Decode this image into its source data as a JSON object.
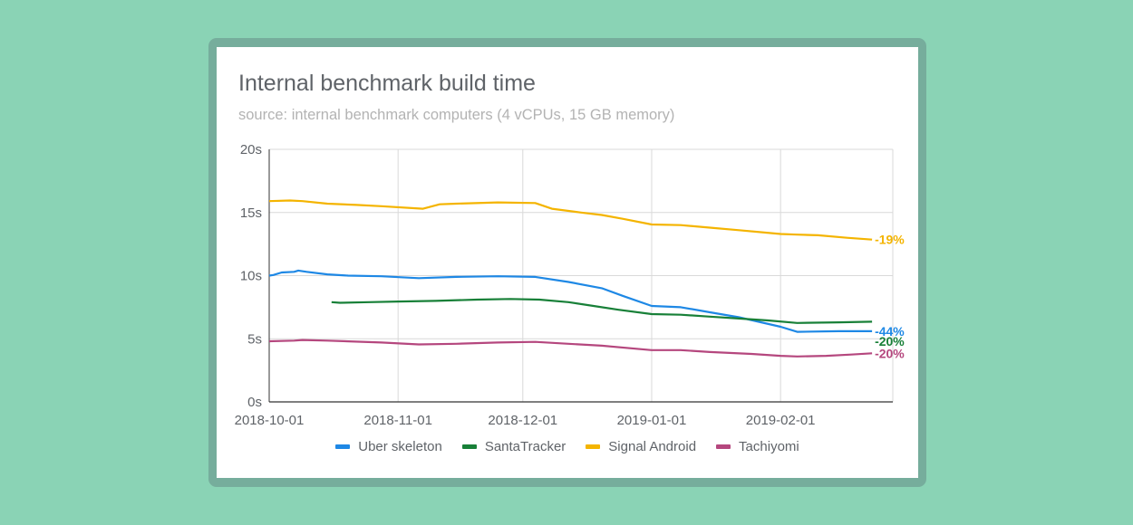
{
  "chart_data": {
    "type": "line",
    "title": "Internal benchmark build time",
    "subtitle": "source:  internal benchmark computers (4 vCPUs, 15 GB memory)",
    "xlabel": "",
    "ylabel": "",
    "x_range": [
      "2018-10-01",
      "2019-02-28"
    ],
    "ylim": [
      0,
      20
    ],
    "y_ticks": [
      "0s",
      "5s",
      "10s",
      "15s",
      "20s"
    ],
    "x_ticks": [
      "2018-10-01",
      "2018-11-01",
      "2018-12-01",
      "2019-01-01",
      "2019-02-01"
    ],
    "grid": true,
    "legend_position": "bottom",
    "series": [
      {
        "name": "Uber skeleton",
        "color": "#1e88e5",
        "change_label": "-44%",
        "points": [
          [
            "2018-10-01",
            10.0
          ],
          [
            "2018-10-02",
            10.05
          ],
          [
            "2018-10-04",
            10.25
          ],
          [
            "2018-10-07",
            10.3
          ],
          [
            "2018-10-08",
            10.4
          ],
          [
            "2018-10-10",
            10.3
          ],
          [
            "2018-10-15",
            10.1
          ],
          [
            "2018-10-20",
            10.0
          ],
          [
            "2018-10-28",
            9.95
          ],
          [
            "2018-11-06",
            9.8
          ],
          [
            "2018-11-15",
            9.9
          ],
          [
            "2018-11-25",
            9.95
          ],
          [
            "2018-12-04",
            9.9
          ],
          [
            "2018-12-12",
            9.5
          ],
          [
            "2018-12-20",
            9.0
          ],
          [
            "2018-12-25",
            8.4
          ],
          [
            "2019-01-01",
            7.6
          ],
          [
            "2019-01-08",
            7.5
          ],
          [
            "2019-01-15",
            7.1
          ],
          [
            "2019-01-22",
            6.7
          ],
          [
            "2019-02-01",
            5.95
          ],
          [
            "2019-02-05",
            5.55
          ],
          [
            "2019-02-15",
            5.6
          ],
          [
            "2019-02-23",
            5.6
          ]
        ]
      },
      {
        "name": "SantaTracker",
        "color": "#188038",
        "change_label": "-20%",
        "points": [
          [
            "2018-10-16",
            7.9
          ],
          [
            "2018-10-18",
            7.85
          ],
          [
            "2018-10-25",
            7.9
          ],
          [
            "2018-11-01",
            7.95
          ],
          [
            "2018-11-10",
            8.0
          ],
          [
            "2018-11-20",
            8.1
          ],
          [
            "2018-11-28",
            8.15
          ],
          [
            "2018-12-05",
            8.1
          ],
          [
            "2018-12-12",
            7.9
          ],
          [
            "2018-12-18",
            7.6
          ],
          [
            "2018-12-24",
            7.3
          ],
          [
            "2019-01-01",
            6.95
          ],
          [
            "2019-01-08",
            6.9
          ],
          [
            "2019-01-15",
            6.75
          ],
          [
            "2019-01-22",
            6.6
          ],
          [
            "2019-01-29",
            6.45
          ],
          [
            "2019-02-05",
            6.25
          ],
          [
            "2019-02-15",
            6.3
          ],
          [
            "2019-02-23",
            6.35
          ]
        ]
      },
      {
        "name": "Signal Android",
        "color": "#f4b400",
        "change_label": "-19%",
        "points": [
          [
            "2018-10-01",
            15.9
          ],
          [
            "2018-10-06",
            15.95
          ],
          [
            "2018-10-09",
            15.9
          ],
          [
            "2018-10-15",
            15.7
          ],
          [
            "2018-10-22",
            15.6
          ],
          [
            "2018-10-28",
            15.5
          ],
          [
            "2018-11-07",
            15.3
          ],
          [
            "2018-11-11",
            15.65
          ],
          [
            "2018-11-15",
            15.7
          ],
          [
            "2018-11-25",
            15.8
          ],
          [
            "2018-12-04",
            15.75
          ],
          [
            "2018-12-08",
            15.3
          ],
          [
            "2018-12-15",
            15.0
          ],
          [
            "2018-12-20",
            14.8
          ],
          [
            "2018-12-25",
            14.5
          ],
          [
            "2019-01-01",
            14.05
          ],
          [
            "2019-01-08",
            14.0
          ],
          [
            "2019-01-15",
            13.8
          ],
          [
            "2019-01-22",
            13.6
          ],
          [
            "2019-02-01",
            13.3
          ],
          [
            "2019-02-05",
            13.25
          ],
          [
            "2019-02-10",
            13.2
          ],
          [
            "2019-02-17",
            13.0
          ],
          [
            "2019-02-23",
            12.85
          ]
        ]
      },
      {
        "name": "Tachiyomi",
        "color": "#b5477e",
        "change_label": "-20%",
        "points": [
          [
            "2018-10-01",
            4.8
          ],
          [
            "2018-10-07",
            4.85
          ],
          [
            "2018-10-09",
            4.9
          ],
          [
            "2018-10-15",
            4.85
          ],
          [
            "2018-10-28",
            4.7
          ],
          [
            "2018-11-06",
            4.55
          ],
          [
            "2018-11-15",
            4.6
          ],
          [
            "2018-11-25",
            4.7
          ],
          [
            "2018-12-04",
            4.75
          ],
          [
            "2018-12-12",
            4.6
          ],
          [
            "2018-12-20",
            4.45
          ],
          [
            "2019-01-01",
            4.1
          ],
          [
            "2019-01-08",
            4.1
          ],
          [
            "2019-01-15",
            3.95
          ],
          [
            "2019-01-25",
            3.8
          ],
          [
            "2019-02-01",
            3.65
          ],
          [
            "2019-02-05",
            3.6
          ],
          [
            "2019-02-12",
            3.65
          ],
          [
            "2019-02-18",
            3.75
          ],
          [
            "2019-02-23",
            3.85
          ]
        ]
      }
    ]
  }
}
